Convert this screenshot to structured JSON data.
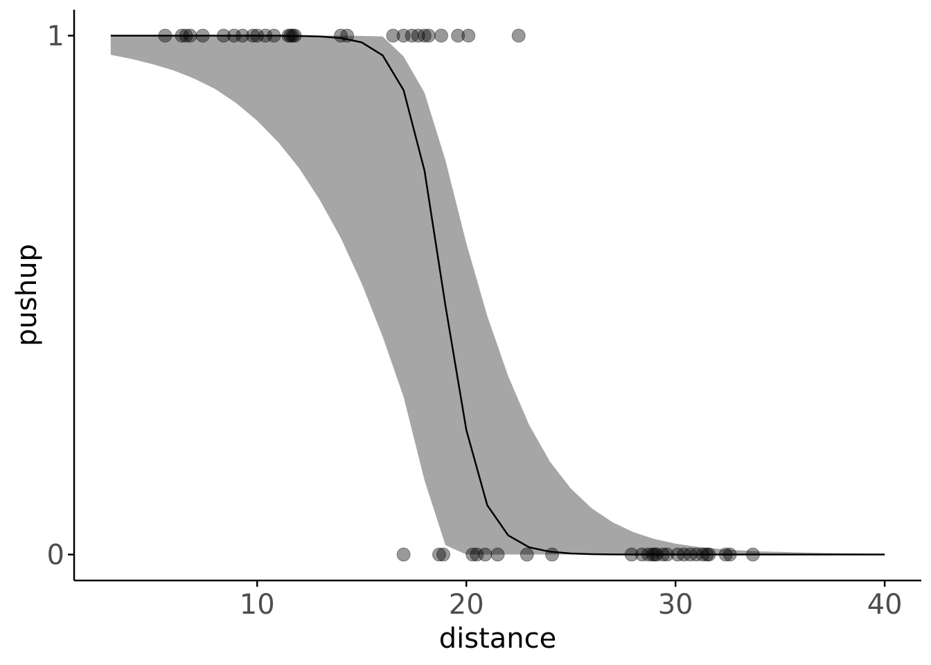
{
  "chart_data": {
    "type": "scatter",
    "title": "",
    "xlabel": "distance",
    "ylabel": "pushup",
    "xlim": [
      1.25,
      41.75
    ],
    "ylim": [
      -0.05,
      1.05
    ],
    "x_ticks": [
      10,
      20,
      30,
      40
    ],
    "x_tick_labels": [
      "10",
      "20",
      "30",
      "40"
    ],
    "y_ticks": [
      0,
      1
    ],
    "y_tick_labels": [
      "0",
      "1"
    ],
    "grid": false,
    "legend": "none",
    "colors": {
      "points": "#000000",
      "points_opacity": 0.4,
      "ribbon": "#a6a6a6",
      "line": "#000000",
      "axis": "#000000",
      "tick_text": "#4d4d4d"
    },
    "points": {
      "y1_x": [
        5.6,
        6.4,
        6.6,
        6.8,
        7.4,
        8.4,
        8.9,
        9.3,
        9.8,
        10.0,
        10.4,
        10.8,
        11.5,
        11.6,
        11.7,
        11.8,
        14.0,
        14.3,
        16.5,
        17.0,
        17.4,
        17.7,
        18.0,
        18.2,
        18.8,
        19.6,
        20.1,
        22.5
      ],
      "y0_x": [
        17.0,
        18.7,
        18.9,
        20.3,
        20.5,
        20.9,
        21.5,
        22.9,
        24.1,
        27.9,
        28.4,
        28.7,
        28.9,
        29.0,
        29.1,
        29.4,
        29.6,
        30.1,
        30.4,
        30.7,
        31.0,
        31.3,
        31.5,
        31.6,
        32.4,
        32.6,
        33.7
      ]
    },
    "fit_line": {
      "x": [
        3,
        4,
        5,
        6,
        7,
        8,
        9,
        10,
        11,
        12,
        13,
        14,
        15,
        16,
        17,
        18,
        19,
        20,
        21,
        22,
        23,
        24,
        25,
        26,
        27,
        28,
        29,
        30,
        31,
        32,
        33,
        34,
        35,
        36,
        37,
        38,
        39,
        40
      ],
      "y": [
        1.0,
        1.0,
        1.0,
        1.0,
        1.0,
        1.0,
        1.0,
        1.0,
        1.0,
        0.9995,
        0.9985,
        0.9955,
        0.987,
        0.962,
        0.895,
        0.74,
        0.48,
        0.24,
        0.095,
        0.037,
        0.014,
        0.0055,
        0.002,
        0.0008,
        0.0003,
        0.0001,
        0.0,
        0.0,
        0.0,
        0.0,
        0.0,
        0.0,
        0.0,
        0.0,
        0.0,
        0.0,
        0.0,
        0.0
      ]
    },
    "ribbon": {
      "x": [
        3,
        4,
        5,
        6,
        7,
        8,
        9,
        10,
        11,
        12,
        13,
        14,
        15,
        16,
        17,
        18,
        19,
        20,
        21,
        22,
        23,
        24,
        25,
        26,
        27,
        28,
        29,
        30,
        31,
        32,
        33,
        34,
        35,
        36,
        37,
        38,
        39,
        40
      ],
      "lower": [
        0.963,
        0.955,
        0.945,
        0.933,
        0.917,
        0.897,
        0.87,
        0.836,
        0.795,
        0.745,
        0.683,
        0.61,
        0.522,
        0.42,
        0.304,
        0.143,
        0.018,
        0.0,
        0.0,
        0.0,
        0.0,
        0.0,
        0.0,
        0.0,
        0.0,
        0.0,
        0.0,
        0.0,
        0.0,
        0.0,
        0.0,
        0.0,
        0.0,
        0.0,
        0.0,
        0.0,
        0.0,
        0.0
      ],
      "upper": [
        1.0,
        1.0,
        1.0,
        1.0,
        1.0,
        1.0,
        1.0,
        1.0,
        1.0,
        1.0,
        1.0,
        1.0,
        0.9995,
        0.9985,
        0.96,
        0.89,
        0.76,
        0.6,
        0.46,
        0.344,
        0.25,
        0.179,
        0.127,
        0.089,
        0.062,
        0.043,
        0.03,
        0.021,
        0.015,
        0.011,
        0.008,
        0.006,
        0.005,
        0.004,
        0.003,
        0.0025,
        0.002,
        0.0015
      ]
    }
  }
}
